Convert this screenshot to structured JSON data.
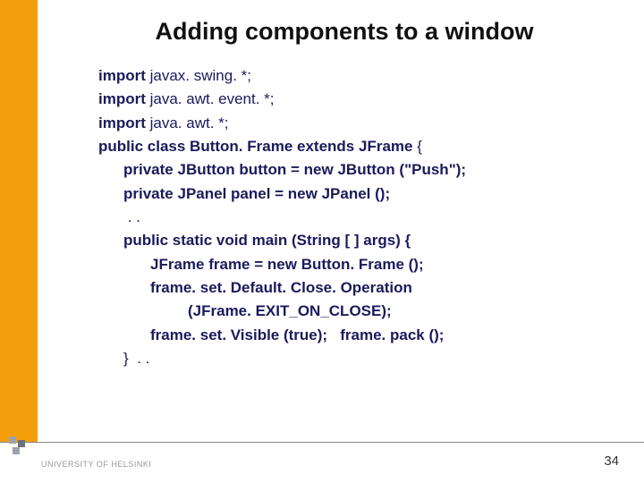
{
  "accent_color": "#f59e0b",
  "title": "Adding components to a window",
  "code": {
    "text_color": "#1a1a5c",
    "lines": [
      {
        "indent": 0,
        "spans": [
          [
            "import ",
            true
          ],
          [
            "javax. swing. *;",
            false
          ]
        ]
      },
      {
        "indent": 0,
        "spans": [
          [
            "import ",
            true
          ],
          [
            "java. awt. event. *;",
            false
          ]
        ]
      },
      {
        "indent": 0,
        "spans": [
          [
            "import ",
            true
          ],
          [
            "java. awt. *;",
            false
          ]
        ]
      },
      {
        "indent": 0,
        "spans": [
          [
            "public class ",
            true
          ],
          [
            "Button. Frame",
            true
          ],
          [
            " extends ",
            true
          ],
          [
            "JFrame",
            true
          ],
          [
            " {",
            false
          ]
        ]
      },
      {
        "indent": 1,
        "spans": [
          [
            "private ",
            true
          ],
          [
            "JButton",
            true
          ],
          [
            " button = ",
            true
          ],
          [
            "new ",
            true
          ],
          [
            "JButton",
            true
          ],
          [
            " (\"Push\");",
            true
          ]
        ]
      },
      {
        "indent": 1,
        "spans": [
          [
            "private ",
            true
          ],
          [
            "JPanel",
            true
          ],
          [
            " panel = ",
            true
          ],
          [
            "new ",
            true
          ],
          [
            "JPanel",
            true
          ],
          [
            " ();",
            true
          ]
        ]
      },
      {
        "indent": 1,
        "spans": [
          [
            " . .",
            false
          ]
        ]
      },
      {
        "indent": 1,
        "spans": [
          [
            "public static void ",
            true
          ],
          [
            "main (String [ ] args) {",
            true
          ]
        ]
      },
      {
        "indent": 2,
        "spans": [
          [
            "JFrame",
            true
          ],
          [
            " frame = ",
            true
          ],
          [
            "new ",
            true
          ],
          [
            "Button. Frame ();",
            true
          ]
        ]
      },
      {
        "indent": 2,
        "spans": [
          [
            "frame. set. Default. Close. Operation",
            true
          ]
        ]
      },
      {
        "indent": 3,
        "spans": [
          [
            "(JFrame. EXIT_ON_CLOSE);",
            true
          ]
        ]
      },
      {
        "indent": 2,
        "spans": [
          [
            "frame. set. Visible ",
            true
          ],
          [
            "(true);   frame. pack ();",
            true
          ]
        ]
      },
      {
        "indent": 1,
        "spans": [
          [
            "}  . .",
            false
          ]
        ]
      }
    ]
  },
  "footer": {
    "university": "UNIVERSITY OF HELSINKI",
    "page_number": "34"
  }
}
